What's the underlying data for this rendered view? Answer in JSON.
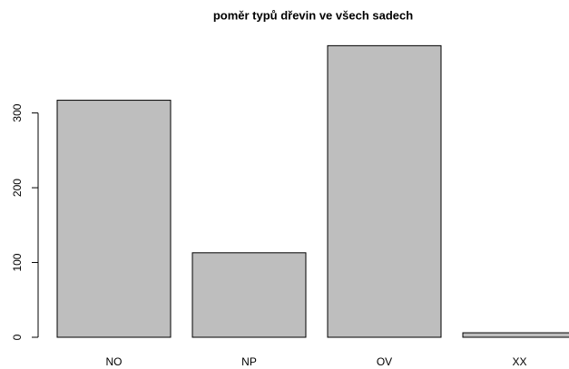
{
  "chart_data": {
    "type": "bar",
    "title": "poměr typů dřevin ve všech sadech",
    "categories": [
      "NO",
      "NP",
      "OV",
      "XX"
    ],
    "values": [
      317,
      113,
      390,
      6
    ],
    "color": "#bebebe",
    "ylim": [
      0,
      405
    ],
    "yticks": [
      0,
      100,
      200,
      300
    ],
    "grid": false
  }
}
